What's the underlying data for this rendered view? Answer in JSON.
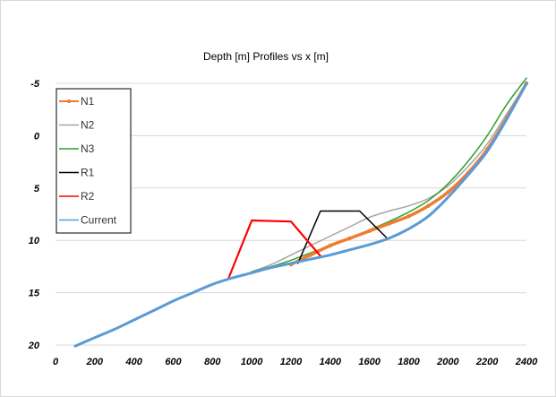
{
  "chart_data": {
    "type": "line",
    "title": "Depth [m]  Profiles vs x [m]",
    "xlabel": "",
    "ylabel": "",
    "xlim": [
      0,
      2400
    ],
    "ylim": [
      20,
      -5
    ],
    "y_reversed": true,
    "x_ticks": [
      "0",
      "200",
      "400",
      "600",
      "800",
      "1000",
      "1200",
      "1400",
      "1600",
      "1800",
      "2000",
      "2200",
      "2400"
    ],
    "y_ticks": [
      "-5",
      "0",
      "5",
      "10",
      "15",
      "20"
    ],
    "grid": "horizontal",
    "legend_position": "left",
    "series": [
      {
        "name": "N1",
        "color": "#ED7D31",
        "marker": true,
        "x": [
          1200,
          1300,
          1400,
          1500,
          1600,
          1700,
          1800,
          1900,
          2000,
          2100,
          2200,
          2300,
          2400
        ],
        "y": [
          12.3,
          11.4,
          10.5,
          9.8,
          9.1,
          8.4,
          7.7,
          6.7,
          5.4,
          3.6,
          1.3,
          -1.7,
          -5
        ]
      },
      {
        "name": "N2",
        "color": "#A5A5A5",
        "x": [
          1000,
          1100,
          1200,
          1300,
          1400,
          1500,
          1600,
          1700,
          1800,
          1900,
          2000,
          2100,
          2200,
          2300,
          2400
        ],
        "y": [
          13.0,
          12.3,
          11.4,
          10.5,
          9.6,
          8.7,
          7.8,
          7.2,
          6.7,
          6.0,
          4.8,
          3.0,
          0.8,
          -2.1,
          -5
        ]
      },
      {
        "name": "N3",
        "color": "#2CA02C",
        "x": [
          1000,
          1100,
          1200,
          1300,
          1400,
          1500,
          1600,
          1700,
          1800,
          1900,
          2000,
          2100,
          2200,
          2300,
          2400
        ],
        "y": [
          13.0,
          12.5,
          11.9,
          11.2,
          10.5,
          9.8,
          9.0,
          8.2,
          7.3,
          6.2,
          4.6,
          2.5,
          0.0,
          -3.0,
          -5.5
        ]
      },
      {
        "name": "R1",
        "color": "#000000",
        "x": [
          1235,
          1350,
          1550,
          1690
        ],
        "y": [
          12.2,
          7.2,
          7.2,
          9.8
        ]
      },
      {
        "name": "R2",
        "color": "#FF0000",
        "x": [
          880,
          1000,
          1200,
          1350
        ],
        "y": [
          13.7,
          8.1,
          8.2,
          11.5
        ]
      },
      {
        "name": "Current",
        "color": "#5B9BD5",
        "x": [
          100,
          200,
          300,
          400,
          500,
          600,
          700,
          800,
          900,
          1000,
          1100,
          1200,
          1300,
          1400,
          1500,
          1600,
          1700,
          1800,
          1900,
          2000,
          2100,
          2200,
          2300,
          2400
        ],
        "y": [
          20.1,
          19.3,
          18.5,
          17.6,
          16.7,
          15.8,
          15.0,
          14.2,
          13.6,
          13.1,
          12.6,
          12.2,
          11.8,
          11.4,
          10.9,
          10.4,
          9.8,
          8.9,
          7.7,
          5.9,
          3.8,
          1.5,
          -1.6,
          -5
        ]
      }
    ]
  }
}
